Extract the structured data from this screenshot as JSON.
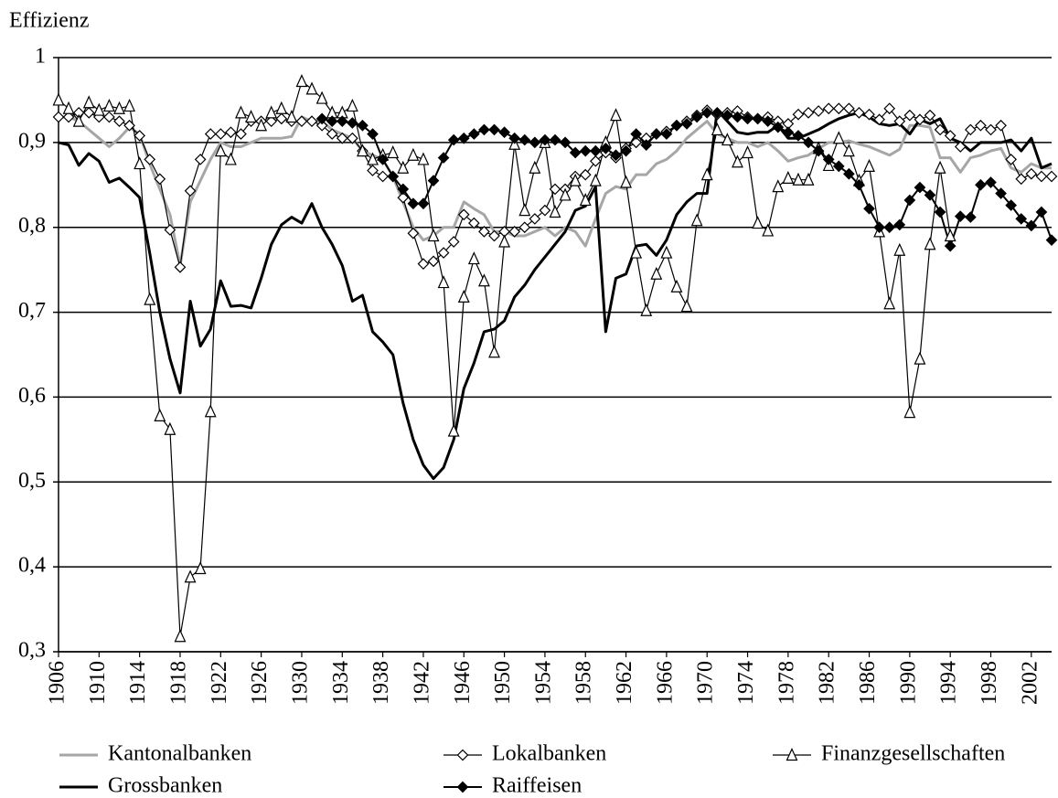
{
  "chart_data": {
    "type": "line",
    "y_label": "Effizienz",
    "x": [
      1906,
      1907,
      1908,
      1909,
      1910,
      1911,
      1912,
      1913,
      1914,
      1915,
      1916,
      1917,
      1918,
      1919,
      1920,
      1921,
      1922,
      1923,
      1924,
      1925,
      1926,
      1927,
      1928,
      1929,
      1930,
      1931,
      1932,
      1933,
      1934,
      1935,
      1936,
      1937,
      1938,
      1939,
      1940,
      1941,
      1942,
      1943,
      1944,
      1945,
      1946,
      1947,
      1948,
      1949,
      1950,
      1951,
      1952,
      1953,
      1954,
      1955,
      1956,
      1957,
      1958,
      1959,
      1960,
      1961,
      1962,
      1963,
      1964,
      1965,
      1966,
      1967,
      1968,
      1969,
      1970,
      1971,
      1972,
      1973,
      1974,
      1975,
      1976,
      1977,
      1978,
      1979,
      1980,
      1981,
      1982,
      1983,
      1984,
      1985,
      1986,
      1987,
      1988,
      1989,
      1990,
      1991,
      1992,
      1993,
      1994,
      1995,
      1996,
      1997,
      1998,
      1999,
      2000,
      2001,
      2002,
      2003,
      2004
    ],
    "xlim": [
      1906,
      2004
    ],
    "xticks": [
      1906,
      1910,
      1914,
      1918,
      1922,
      1926,
      1930,
      1934,
      1938,
      1942,
      1946,
      1950,
      1954,
      1958,
      1962,
      1966,
      1970,
      1974,
      1978,
      1982,
      1986,
      1990,
      1994,
      1998,
      2002
    ],
    "ylim": [
      0.3,
      1
    ],
    "yticks": [
      {
        "value": 0.3,
        "label": "0,3"
      },
      {
        "value": 0.4,
        "label": "0,4"
      },
      {
        "value": 0.5,
        "label": "0,5"
      },
      {
        "value": 0.6,
        "label": "0,6"
      },
      {
        "value": 0.7,
        "label": "0,7"
      },
      {
        "value": 0.8,
        "label": "0,8"
      },
      {
        "value": 0.9,
        "label": "0,9"
      },
      1
    ],
    "grid": true,
    "series": [
      {
        "name": "Kantonalbanken",
        "color": "#a6a6a6",
        "line_width": 3,
        "marker": "none",
        "values": [
          0.93,
          0.93,
          0.925,
          0.915,
          0.905,
          0.895,
          0.905,
          0.918,
          0.91,
          0.875,
          0.845,
          0.815,
          0.755,
          0.83,
          0.855,
          0.88,
          0.9,
          0.895,
          0.895,
          0.9,
          0.905,
          0.905,
          0.905,
          0.907,
          0.93,
          0.925,
          0.925,
          0.915,
          0.91,
          0.905,
          0.89,
          0.885,
          0.88,
          0.86,
          0.83,
          0.8,
          0.785,
          0.79,
          0.8,
          0.8,
          0.83,
          0.822,
          0.815,
          0.795,
          0.795,
          0.79,
          0.79,
          0.795,
          0.8,
          0.79,
          0.8,
          0.795,
          0.778,
          0.81,
          0.84,
          0.848,
          0.845,
          0.862,
          0.862,
          0.875,
          0.88,
          0.89,
          0.905,
          0.915,
          0.925,
          0.91,
          0.905,
          0.9,
          0.9,
          0.895,
          0.9,
          0.89,
          0.878,
          0.882,
          0.885,
          0.893,
          0.9,
          0.9,
          0.902,
          0.898,
          0.895,
          0.89,
          0.885,
          0.892,
          0.92,
          0.92,
          0.918,
          0.882,
          0.882,
          0.865,
          0.882,
          0.885,
          0.89,
          0.893,
          0.87,
          0.865,
          0.875,
          0.87,
          0.87
        ]
      },
      {
        "name": "Lokalbanken",
        "color": "#000000",
        "line_width": 1.2,
        "marker": "diamond-open",
        "values": [
          0.93,
          0.93,
          0.935,
          0.935,
          0.93,
          0.93,
          0.925,
          0.92,
          0.908,
          0.88,
          0.857,
          0.797,
          0.753,
          0.843,
          0.88,
          0.91,
          0.91,
          0.912,
          0.91,
          0.925,
          0.925,
          0.925,
          0.928,
          0.925,
          0.925,
          0.925,
          0.92,
          0.91,
          0.905,
          0.905,
          0.89,
          0.867,
          0.86,
          0.86,
          0.835,
          0.793,
          0.757,
          0.76,
          0.77,
          0.783,
          0.815,
          0.805,
          0.795,
          0.79,
          0.795,
          0.795,
          0.8,
          0.81,
          0.82,
          0.845,
          0.845,
          0.86,
          0.862,
          0.878,
          0.888,
          0.882,
          0.893,
          0.9,
          0.905,
          0.91,
          0.913,
          0.92,
          0.925,
          0.932,
          0.938,
          0.933,
          0.935,
          0.937,
          0.93,
          0.928,
          0.93,
          0.925,
          0.922,
          0.933,
          0.935,
          0.937,
          0.94,
          0.94,
          0.94,
          0.935,
          0.933,
          0.927,
          0.94,
          0.925,
          0.932,
          0.927,
          0.932,
          0.915,
          0.908,
          0.895,
          0.915,
          0.92,
          0.915,
          0.92,
          0.88,
          0.857,
          0.863,
          0.86,
          0.86
        ]
      },
      {
        "name": "Finanzgesellschaften",
        "color": "#000000",
        "line_width": 1.2,
        "marker": "triangle-open",
        "values": [
          0.95,
          0.94,
          0.925,
          0.947,
          0.938,
          0.943,
          0.94,
          0.943,
          0.875,
          0.715,
          0.578,
          0.562,
          0.318,
          0.388,
          0.398,
          0.583,
          0.89,
          0.88,
          0.935,
          0.93,
          0.92,
          0.935,
          0.94,
          0.93,
          0.972,
          0.963,
          0.952,
          0.935,
          0.935,
          0.943,
          0.89,
          0.88,
          0.885,
          0.888,
          0.87,
          0.885,
          0.88,
          0.79,
          0.735,
          0.56,
          0.718,
          0.763,
          0.737,
          0.653,
          0.783,
          0.898,
          0.82,
          0.87,
          0.9,
          0.818,
          0.838,
          0.855,
          0.832,
          0.855,
          0.9,
          0.932,
          0.853,
          0.77,
          0.702,
          0.745,
          0.77,
          0.73,
          0.707,
          0.808,
          0.862,
          0.915,
          0.903,
          0.877,
          0.888,
          0.805,
          0.796,
          0.848,
          0.858,
          0.856,
          0.856,
          0.893,
          0.873,
          0.905,
          0.89,
          0.855,
          0.872,
          0.795,
          0.71,
          0.773,
          0.582,
          0.645,
          0.78,
          0.87,
          0.79,
          null,
          null,
          null,
          null,
          null,
          null,
          null,
          null,
          null,
          null
        ]
      },
      {
        "name": "Grossbanken",
        "color": "#000000",
        "line_width": 3,
        "marker": "none",
        "values": [
          0.9,
          0.897,
          0.873,
          0.887,
          0.878,
          0.853,
          0.858,
          0.847,
          0.835,
          0.77,
          0.7,
          0.645,
          0.605,
          0.713,
          0.66,
          0.68,
          0.737,
          0.707,
          0.708,
          0.705,
          0.74,
          0.78,
          0.803,
          0.812,
          0.805,
          0.828,
          0.8,
          0.78,
          0.755,
          0.713,
          0.72,
          0.677,
          0.665,
          0.65,
          0.593,
          0.55,
          0.52,
          0.504,
          0.517,
          0.55,
          0.61,
          0.64,
          0.677,
          0.68,
          0.69,
          0.718,
          0.732,
          0.75,
          0.765,
          0.78,
          0.795,
          0.82,
          0.825,
          0.848,
          0.677,
          0.74,
          0.745,
          0.778,
          0.78,
          0.767,
          0.785,
          0.815,
          0.83,
          0.84,
          0.84,
          0.938,
          0.925,
          0.912,
          0.91,
          0.912,
          0.912,
          0.92,
          0.905,
          0.905,
          0.91,
          0.915,
          0.922,
          0.928,
          0.932,
          0.935,
          0.93,
          0.922,
          0.92,
          0.922,
          0.91,
          0.927,
          0.922,
          0.928,
          0.905,
          0.9,
          0.89,
          0.9,
          0.9,
          0.9,
          0.903,
          0.89,
          0.905,
          0.87,
          0.875
        ]
      },
      {
        "name": "Raiffeisen",
        "color": "#000000",
        "line_width": 2,
        "marker": "diamond-filled",
        "values": [
          null,
          null,
          null,
          null,
          null,
          null,
          null,
          null,
          null,
          null,
          null,
          null,
          null,
          null,
          null,
          null,
          null,
          null,
          null,
          null,
          null,
          null,
          null,
          null,
          null,
          null,
          0.928,
          0.925,
          0.925,
          0.923,
          0.92,
          0.91,
          0.88,
          0.86,
          0.845,
          0.828,
          0.828,
          0.855,
          0.882,
          0.903,
          0.905,
          0.91,
          0.915,
          0.915,
          0.912,
          0.905,
          0.903,
          0.9,
          0.903,
          0.903,
          0.9,
          0.888,
          0.89,
          0.89,
          0.893,
          0.885,
          0.89,
          0.91,
          0.897,
          0.91,
          0.91,
          0.92,
          0.922,
          0.93,
          0.935,
          0.935,
          0.932,
          0.93,
          0.928,
          0.928,
          0.925,
          0.918,
          0.912,
          0.908,
          0.9,
          0.89,
          0.88,
          0.872,
          0.863,
          0.85,
          0.822,
          0.8,
          0.8,
          0.803,
          0.832,
          0.847,
          0.838,
          0.818,
          0.778,
          0.813,
          0.812,
          0.85,
          0.853,
          0.84,
          0.826,
          0.81,
          0.802,
          0.818,
          0.785
        ]
      }
    ]
  }
}
